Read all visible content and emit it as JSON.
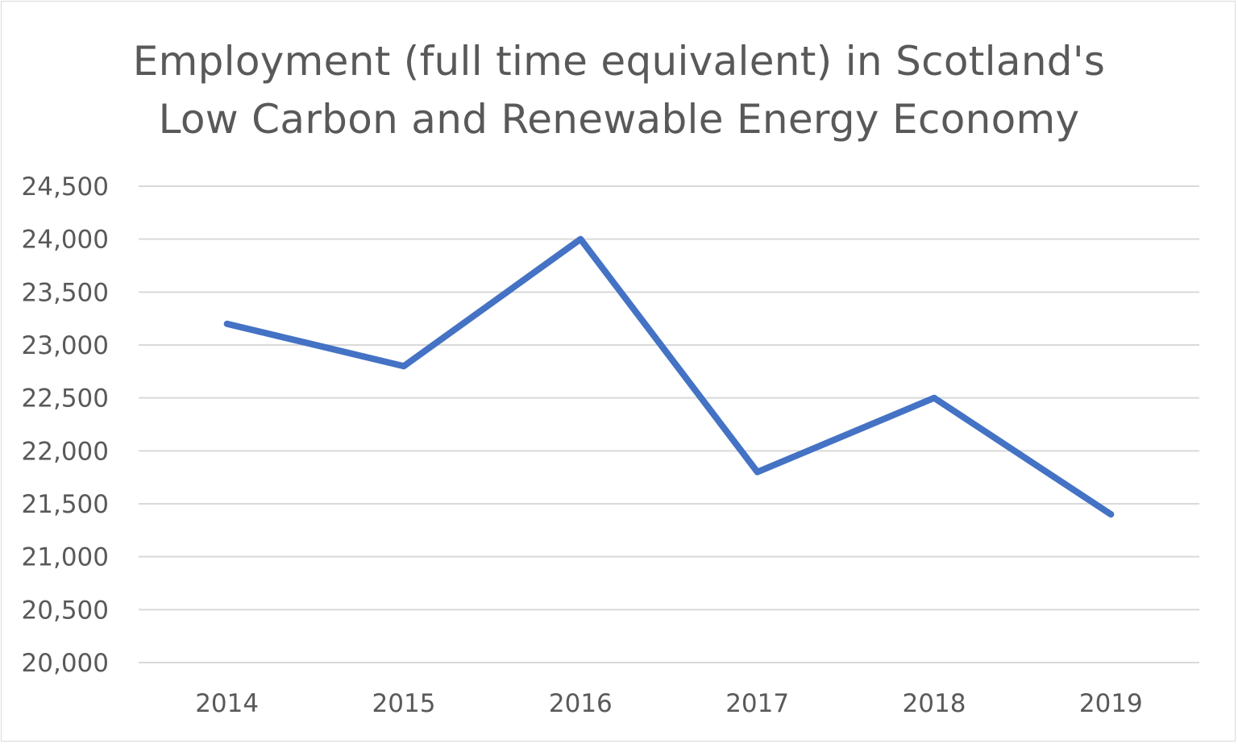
{
  "chart_data": {
    "type": "line",
    "title": [
      "Employment (full time equivalent) in Scotland's",
      "Low Carbon and Renewable Energy Economy"
    ],
    "xlabel": "",
    "ylabel": "",
    "categories": [
      "2014",
      "2015",
      "2016",
      "2017",
      "2018",
      "2019"
    ],
    "series": [
      {
        "values": [
          23200,
          22800,
          24000,
          21800,
          22500,
          21400
        ],
        "color": "#4472C4"
      }
    ],
    "ylim": [
      20000,
      24500
    ],
    "yticks": [
      20000,
      20500,
      21000,
      21500,
      22000,
      22500,
      23000,
      23500,
      24000,
      24500
    ],
    "ytick_labels": [
      "20,000",
      "20,500",
      "21,000",
      "21,500",
      "22,000",
      "22,500",
      "23,000",
      "23,500",
      "24,000",
      "24,500"
    ],
    "grid": true,
    "gridline_color": "#d9d9d9",
    "legend": "none"
  }
}
